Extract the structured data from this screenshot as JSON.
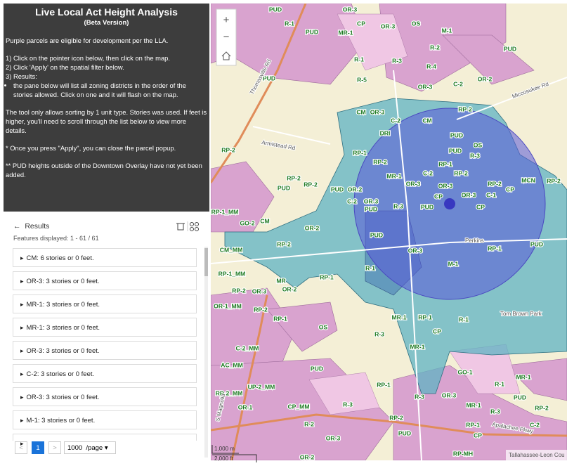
{
  "sidebar": {
    "title": "Live Local Act Height Analysis",
    "subtitle": "(Beta Version)",
    "intro": "Purple parcels are eligible for development per the LLA.",
    "steps": [
      "1) Click on the pointer icon below, then click on the map.",
      "2) Click 'Apply' on the spatial filter below.",
      "3) Results:"
    ],
    "bullet": "the pane below will list all zoning districts in the order of the stories allowed. Click on one and it will flash on the map.",
    "notes": [
      "The tool only allows sorting by 1 unit type. Stories was used. If feet is higher, you'll need to scroll through the list below to view more details.",
      "* Once you press \"Apply\", you can close the parcel popup.",
      "** PUD heights outside of the Downtown Overlay have not yet been added."
    ]
  },
  "results": {
    "back": "←",
    "title": "Results",
    "features_displayed": "Features displayed: 1 - 61 / 61",
    "items": [
      "CM: 6 stories or 0 feet.",
      "OR-3: 3 stories or 0 feet.",
      "MR-1: 3 stories or 0 feet.",
      "MR-1: 3 stories or 0 feet.",
      "OR-3: 3 stories or 0 feet.",
      "C-2: 3 stories or 0 feet.",
      "OR-3: 3 stories or 0 feet.",
      "M-1: 3 stories or 0 feet."
    ]
  },
  "pagination": {
    "prev": "<",
    "page": "1",
    "next": ">",
    "page_size": "1000",
    "per_page": "/page"
  },
  "map": {
    "zoom_in": "+",
    "zoom_out": "−",
    "labels": [
      "PUD",
      "OR-3",
      "R-1",
      "PUD",
      "MR-1",
      "CP",
      "OR-3",
      "OS",
      "M-1",
      "R-2",
      "PUD",
      "R-1",
      "R-3",
      "R-4",
      "PUD",
      "R-5",
      "OR-3",
      "C-2",
      "OR-2",
      "CM",
      "OR-3",
      "C-2",
      "CM",
      "RP-2",
      "DRI",
      "PUD",
      "OS",
      "PUD",
      "R-3",
      "RP-1",
      "RP-2",
      "RP-1",
      "MR-1",
      "C-2",
      "RP-2",
      "OR-3",
      "OR-3",
      "RP-2",
      "MCN",
      "RP-2",
      "C-1",
      "CP",
      "PUD",
      "OR-2",
      "C-2",
      "OR-3",
      "PUD",
      "R-3",
      "PUD",
      "CP",
      "OR-3",
      "CP",
      "RP-2",
      "RP-2",
      "PUD",
      "RP-2",
      "RP-1_MM",
      "GO-2",
      "CM",
      "OR-2",
      "PUD",
      "OR-3",
      "RP-1",
      "PUD",
      "RP-2",
      "CM_MM",
      "R-1",
      "M-1",
      "RP-1",
      "RP-1_MM",
      "MR",
      "OR-2",
      "RP-2",
      "OR-3",
      "OR-1_MM",
      "RP-2",
      "RP-1",
      "MR-1",
      "RP-1",
      "R-1",
      "OS",
      "CP",
      "R-3",
      "C-2_MM",
      "MR-1",
      "AC_MM",
      "PUD",
      "GO-1",
      "MR-1",
      "R-1",
      "UP-2_MM",
      "RP-1",
      "R-3",
      "RP-2_MM",
      "OR-1",
      "CP_MM",
      "R-3",
      "OR-3",
      "MR-1",
      "PUD",
      "R-3",
      "RP-2",
      "R-2",
      "RP-2",
      "RP-1",
      "C-2",
      "OR-3",
      "PUD",
      "CP",
      "RP-MH",
      "OR-2"
    ],
    "places": [
      "Thomasville Rd",
      "Armistead Rd",
      "Miccosukee Rd",
      "Perkins",
      "Tom Brown Park",
      "S Magnolia",
      "Apalachee Pkwy"
    ],
    "scale": {
      "metric": "1,000 m",
      "imperial": "2,000 ft"
    },
    "attribution": "Tallahassee-Leon Cou"
  }
}
